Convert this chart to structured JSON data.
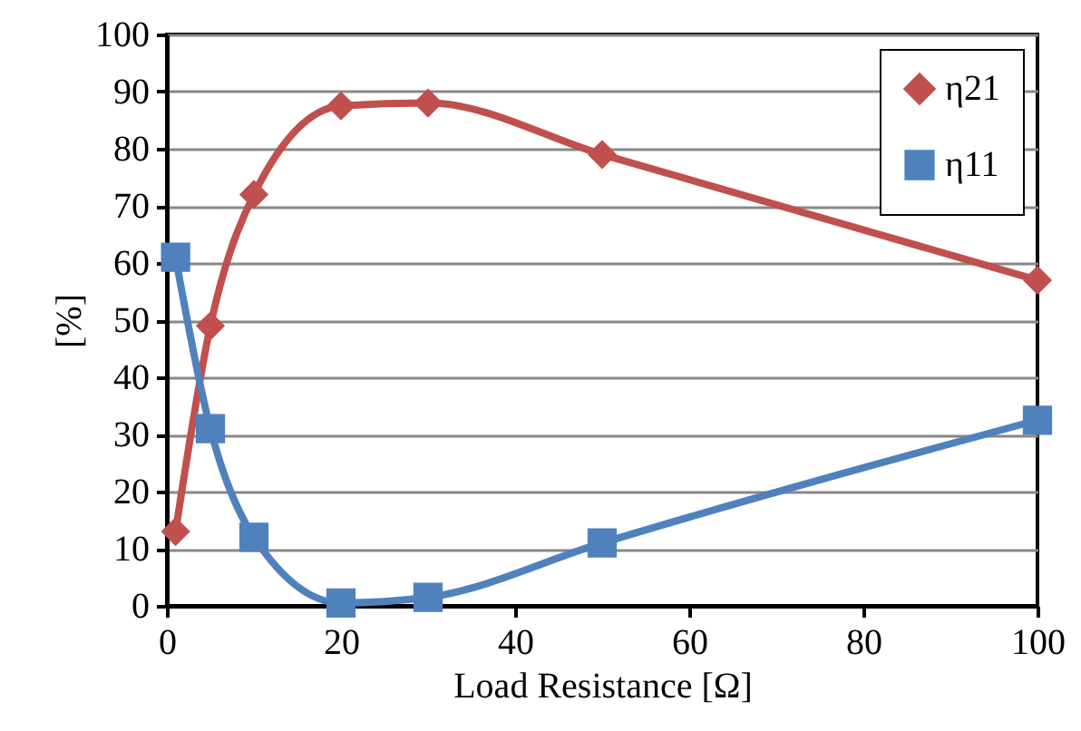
{
  "chart_data": {
    "type": "line",
    "xlabel": "Load Resistance [Ω]",
    "ylabel": "[%]",
    "x": [
      1,
      5,
      10,
      20,
      30,
      50,
      100
    ],
    "series": [
      {
        "name": "η21",
        "color": "#c0504d",
        "marker": "diamond",
        "values": [
          13,
          49,
          72,
          87.5,
          88,
          79,
          57
        ]
      },
      {
        "name": "η11",
        "color": "#4f81bd",
        "marker": "square",
        "values": [
          61,
          31,
          12,
          0.5,
          1.5,
          11,
          32.5
        ]
      }
    ],
    "xlim": [
      0,
      100
    ],
    "xticks": [
      0,
      20,
      40,
      60,
      80,
      100
    ],
    "ylim": [
      0,
      100
    ],
    "yticks": [
      0,
      10,
      20,
      30,
      40,
      50,
      60,
      70,
      80,
      90,
      100
    ],
    "grid": "y",
    "legend": "top right",
    "line_style": "solid"
  }
}
